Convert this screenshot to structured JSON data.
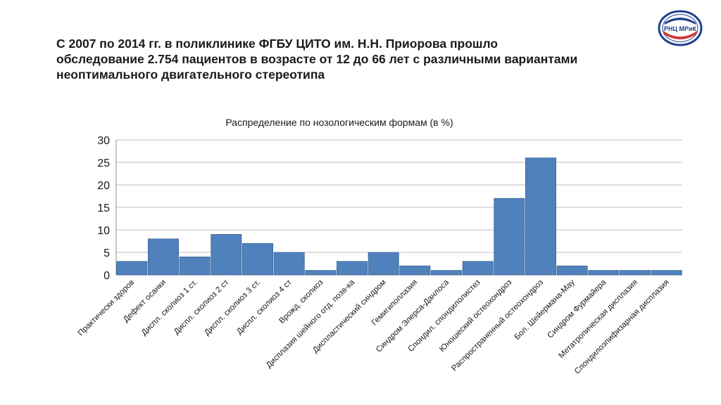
{
  "slide": {
    "heading_lines": [
      "С 2007 по 2014 гг. в поликлинике ФГБУ ЦИТО им. Н.Н. Приорова прошло",
      "обследование 2.754 пациентов в возрасте от 12 до 66 лет с различными вариантами",
      "неоптимального двигательного стереотипа"
    ],
    "logo": {
      "text": "РНЦ МРиК",
      "icon": "organization-emblem-icon"
    }
  },
  "colors": {
    "bar": "#4f81bd",
    "bar_edge": "#3a6391",
    "grid": "#bfbfbf",
    "axis_text": "#1a1a1a",
    "logo_blue": "#1f3f8f",
    "logo_red": "#d03a3a"
  },
  "chart_data": {
    "type": "bar",
    "title": "Распределение по нозологическим формам (в %)",
    "xlabel": "",
    "ylabel": "",
    "ylim": [
      0,
      30
    ],
    "yticks": [
      "0",
      "5",
      "10",
      "15",
      "20",
      "25",
      "30"
    ],
    "grid": true,
    "legend": "none",
    "categories": [
      "Практически здоров",
      "Дефект осанки",
      "Диспл. сколиоз 1 ст.",
      "Диспл. сколиоз 2 ст",
      "Диспл. сколиоз 3 ст.",
      "Диспл. сколиоз 4 ст",
      "Врожд. сколиоз",
      "Дисплазия шейного отд. позв-ка",
      "Диспластический синдром",
      "Гемигипоплазия",
      "Синдром Элерса-Данлоса",
      "Спондил. спондилолистез",
      "Юношеский остеохондроз",
      "Распространенный остеохондроз",
      "Бол. Шейермана-Мау",
      "Синдром Фурмайера",
      "Метатропическая дисплазия",
      "Спондилоэпифизарная дисплазия"
    ],
    "values": [
      3,
      8,
      4,
      9,
      7,
      5,
      1,
      3,
      5,
      2,
      1,
      3,
      17,
      26,
      2,
      1,
      1,
      1
    ]
  }
}
